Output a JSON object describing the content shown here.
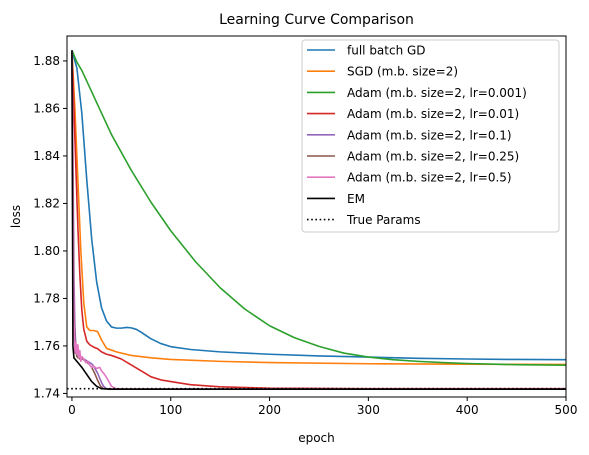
{
  "chart_data": {
    "type": "line",
    "title": "Learning Curve Comparison",
    "xlabel": "epoch",
    "ylabel": "loss",
    "xlim": [
      -5,
      500
    ],
    "ylim": [
      1.7385,
      1.8905
    ],
    "xticks": [
      0,
      100,
      200,
      300,
      400,
      500
    ],
    "yticks": [
      1.74,
      1.76,
      1.78,
      1.8,
      1.82,
      1.84,
      1.86,
      1.88
    ],
    "ytick_labels": [
      "1.74",
      "1.76",
      "1.78",
      "1.80",
      "1.82",
      "1.84",
      "1.86",
      "1.88"
    ],
    "grid": false,
    "legend_position": "top-right",
    "series": [
      {
        "name": "full batch GD",
        "color": "#1f77b4",
        "style": "solid",
        "points": [
          [
            0,
            1.8845
          ],
          [
            5,
            1.877
          ],
          [
            10,
            1.858
          ],
          [
            15,
            1.83
          ],
          [
            20,
            1.805
          ],
          [
            25,
            1.787
          ],
          [
            30,
            1.776
          ],
          [
            35,
            1.7705
          ],
          [
            40,
            1.768
          ],
          [
            45,
            1.7675
          ],
          [
            50,
            1.7675
          ],
          [
            55,
            1.7678
          ],
          [
            60,
            1.7676
          ],
          [
            65,
            1.767
          ],
          [
            70,
            1.7658
          ],
          [
            80,
            1.763
          ],
          [
            90,
            1.761
          ],
          [
            100,
            1.7597
          ],
          [
            120,
            1.7585
          ],
          [
            150,
            1.7575
          ],
          [
            200,
            1.7565
          ],
          [
            250,
            1.7558
          ],
          [
            300,
            1.7553
          ],
          [
            350,
            1.7548
          ],
          [
            400,
            1.7545
          ],
          [
            450,
            1.7543
          ],
          [
            500,
            1.7542
          ]
        ]
      },
      {
        "name": "SGD (m.b. size=2)",
        "color": "#ff7f0e",
        "style": "solid",
        "points": [
          [
            0,
            1.884
          ],
          [
            3,
            1.86
          ],
          [
            6,
            1.83
          ],
          [
            9,
            1.8
          ],
          [
            12,
            1.778
          ],
          [
            15,
            1.768
          ],
          [
            18,
            1.7665
          ],
          [
            22,
            1.7665
          ],
          [
            26,
            1.766
          ],
          [
            30,
            1.7625
          ],
          [
            35,
            1.759
          ],
          [
            45,
            1.7575
          ],
          [
            60,
            1.756
          ],
          [
            80,
            1.755
          ],
          [
            100,
            1.7543
          ],
          [
            150,
            1.7535
          ],
          [
            200,
            1.753
          ],
          [
            300,
            1.7525
          ],
          [
            400,
            1.7523
          ],
          [
            500,
            1.7522
          ]
        ]
      },
      {
        "name": "Adam (m.b. size=2, lr=0.001)",
        "color": "#2ca02c",
        "style": "solid",
        "points": [
          [
            0,
            1.8845
          ],
          [
            5,
            1.8795
          ],
          [
            10,
            1.876
          ],
          [
            20,
            1.867
          ],
          [
            30,
            1.858
          ],
          [
            40,
            1.849
          ],
          [
            50,
            1.8415
          ],
          [
            60,
            1.834
          ],
          [
            80,
            1.8205
          ],
          [
            100,
            1.8085
          ],
          [
            125,
            1.7955
          ],
          [
            150,
            1.7845
          ],
          [
            175,
            1.7755
          ],
          [
            200,
            1.7685
          ],
          [
            225,
            1.7635
          ],
          [
            250,
            1.7598
          ],
          [
            275,
            1.757
          ],
          [
            300,
            1.7553
          ],
          [
            325,
            1.7542
          ],
          [
            350,
            1.7535
          ],
          [
            375,
            1.753
          ],
          [
            400,
            1.7526
          ],
          [
            450,
            1.7521
          ],
          [
            500,
            1.7519
          ]
        ]
      },
      {
        "name": "Adam (m.b. size=2, lr=0.01)",
        "color": "#d62728",
        "style": "solid",
        "points": [
          [
            0,
            1.884
          ],
          [
            2,
            1.86
          ],
          [
            4,
            1.835
          ],
          [
            6,
            1.81
          ],
          [
            8,
            1.79
          ],
          [
            10,
            1.775
          ],
          [
            12,
            1.767
          ],
          [
            15,
            1.762
          ],
          [
            18,
            1.7605
          ],
          [
            22,
            1.7595
          ],
          [
            26,
            1.7588
          ],
          [
            30,
            1.7575
          ],
          [
            35,
            1.7565
          ],
          [
            40,
            1.756
          ],
          [
            50,
            1.7545
          ],
          [
            60,
            1.752
          ],
          [
            70,
            1.7495
          ],
          [
            80,
            1.747
          ],
          [
            90,
            1.7457
          ],
          [
            100,
            1.745
          ],
          [
            120,
            1.7437
          ],
          [
            150,
            1.7428
          ],
          [
            200,
            1.7422
          ],
          [
            300,
            1.742
          ],
          [
            500,
            1.742
          ]
        ]
      },
      {
        "name": "Adam (m.b. size=2, lr=0.1)",
        "color": "#9467bd",
        "style": "solid",
        "points": [
          [
            0,
            1.884
          ],
          [
            1,
            1.84
          ],
          [
            2,
            1.79
          ],
          [
            3,
            1.768
          ],
          [
            4,
            1.7595
          ],
          [
            6,
            1.7565
          ],
          [
            8,
            1.7555
          ],
          [
            10,
            1.755
          ],
          [
            12,
            1.7545
          ],
          [
            14,
            1.754
          ],
          [
            16,
            1.7535
          ],
          [
            18,
            1.753
          ],
          [
            20,
            1.7525
          ],
          [
            22,
            1.7515
          ],
          [
            24,
            1.75
          ],
          [
            26,
            1.7485
          ],
          [
            28,
            1.7465
          ],
          [
            30,
            1.7445
          ],
          [
            32,
            1.743
          ],
          [
            35,
            1.742
          ],
          [
            40,
            1.7418
          ],
          [
            50,
            1.7418
          ],
          [
            100,
            1.7418
          ],
          [
            300,
            1.7418
          ],
          [
            500,
            1.7418
          ]
        ]
      },
      {
        "name": "Adam (m.b. size=2, lr=0.25)",
        "color": "#8c564b",
        "style": "solid",
        "points": [
          [
            0,
            1.884
          ],
          [
            1,
            1.83
          ],
          [
            2,
            1.775
          ],
          [
            3,
            1.76
          ],
          [
            5,
            1.7555
          ],
          [
            8,
            1.7545
          ],
          [
            11,
            1.7545
          ],
          [
            14,
            1.7535
          ],
          [
            17,
            1.7525
          ],
          [
            20,
            1.751
          ],
          [
            23,
            1.7485
          ],
          [
            26,
            1.7455
          ],
          [
            29,
            1.743
          ],
          [
            32,
            1.742
          ],
          [
            40,
            1.7418
          ],
          [
            60,
            1.7418
          ],
          [
            200,
            1.7418
          ],
          [
            500,
            1.7418
          ]
        ]
      },
      {
        "name": "Adam (m.b. size=2, lr=0.5)",
        "color": "#e377c2",
        "style": "solid",
        "points": [
          [
            0,
            1.884
          ],
          [
            1,
            1.82
          ],
          [
            2,
            1.77
          ],
          [
            3,
            1.757
          ],
          [
            4,
            1.7615
          ],
          [
            5,
            1.7565
          ],
          [
            6,
            1.7605
          ],
          [
            7,
            1.755
          ],
          [
            8,
            1.758
          ],
          [
            9,
            1.7535
          ],
          [
            10,
            1.7555
          ],
          [
            12,
            1.7545
          ],
          [
            14,
            1.753
          ],
          [
            16,
            1.7535
          ],
          [
            18,
            1.752
          ],
          [
            20,
            1.751
          ],
          [
            22,
            1.7515
          ],
          [
            25,
            1.7505
          ],
          [
            28,
            1.751
          ],
          [
            30,
            1.7495
          ],
          [
            33,
            1.748
          ],
          [
            36,
            1.746
          ],
          [
            40,
            1.743
          ],
          [
            45,
            1.742
          ],
          [
            55,
            1.7418
          ],
          [
            100,
            1.7418
          ],
          [
            300,
            1.7418
          ],
          [
            500,
            1.7418
          ]
        ]
      },
      {
        "name": "EM",
        "color": "#000000",
        "style": "solid",
        "points": [
          [
            0,
            1.8845
          ],
          [
            1,
            1.76
          ],
          [
            2,
            1.755
          ],
          [
            5,
            1.7535
          ],
          [
            10,
            1.751
          ],
          [
            15,
            1.748
          ],
          [
            20,
            1.745
          ],
          [
            25,
            1.743
          ],
          [
            30,
            1.742
          ],
          [
            40,
            1.7418
          ],
          [
            100,
            1.7418
          ],
          [
            300,
            1.7418
          ],
          [
            500,
            1.7418
          ]
        ]
      },
      {
        "name": "True Params",
        "color": "#000000",
        "style": "dotted",
        "points": [
          [
            -5,
            1.742
          ],
          [
            500,
            1.742
          ]
        ]
      }
    ]
  }
}
